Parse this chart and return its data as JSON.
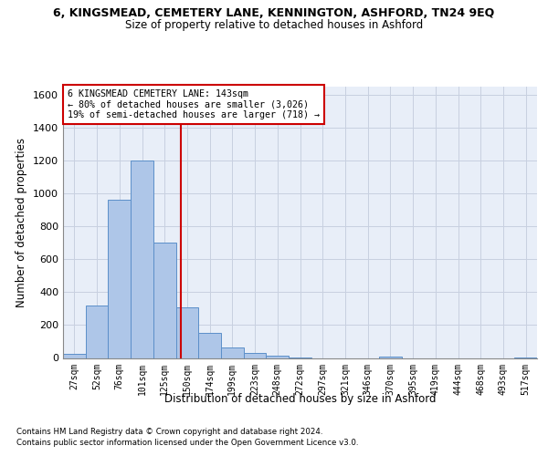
{
  "title_line1": "6, KINGSMEAD, CEMETERY LANE, KENNINGTON, ASHFORD, TN24 9EQ",
  "title_line2": "Size of property relative to detached houses in Ashford",
  "xlabel": "Distribution of detached houses by size in Ashford",
  "ylabel": "Number of detached properties",
  "footnote1": "Contains HM Land Registry data © Crown copyright and database right 2024.",
  "footnote2": "Contains public sector information licensed under the Open Government Licence v3.0.",
  "categories": [
    "27sqm",
    "52sqm",
    "76sqm",
    "101sqm",
    "125sqm",
    "150sqm",
    "174sqm",
    "199sqm",
    "223sqm",
    "248sqm",
    "272sqm",
    "297sqm",
    "321sqm",
    "346sqm",
    "370sqm",
    "395sqm",
    "419sqm",
    "444sqm",
    "468sqm",
    "493sqm",
    "517sqm"
  ],
  "values": [
    25,
    320,
    960,
    1200,
    700,
    310,
    155,
    65,
    30,
    15,
    5,
    0,
    0,
    0,
    8,
    0,
    0,
    0,
    0,
    0,
    5
  ],
  "bar_color": "#aec6e8",
  "bar_edge_color": "#5b8fc9",
  "grid_color": "#c8d0e0",
  "bg_color": "#e8eef8",
  "vline_color": "#cc0000",
  "box_text_line1": "6 KINGSMEAD CEMETERY LANE: 143sqm",
  "box_text_line2": "← 80% of detached houses are smaller (3,026)",
  "box_text_line3": "19% of semi-detached houses are larger (718) →",
  "box_color": "#cc0000",
  "ylim": [
    0,
    1650
  ],
  "yticks": [
    0,
    200,
    400,
    600,
    800,
    1000,
    1200,
    1400,
    1600
  ]
}
